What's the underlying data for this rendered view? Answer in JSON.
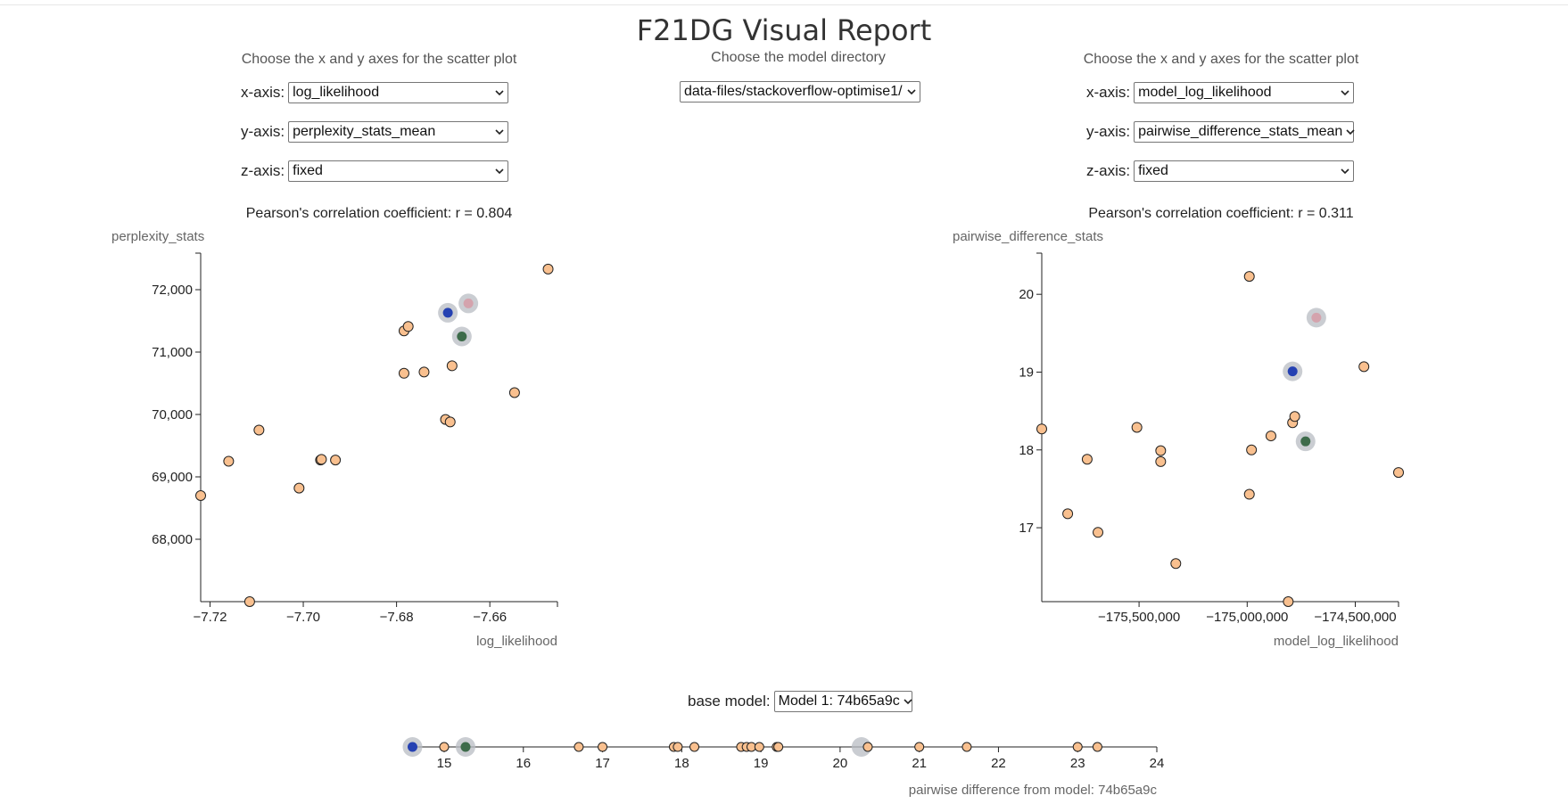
{
  "header": {
    "title": "F21DG Visual Report"
  },
  "left_panel": {
    "caption": "Choose the x and y axes for the scatter plot",
    "x_label": "x-axis:",
    "x_value": "log_likelihood",
    "y_label": "y-axis:",
    "y_value": "perplexity_stats_mean",
    "z_label": "z-axis:",
    "z_value": "fixed",
    "pearson": "Pearson's correlation coefficient: r = 0.804"
  },
  "center_panel": {
    "caption": "Choose the model directory",
    "directory_value": "data-files/stackoverflow-optimise1/"
  },
  "right_panel": {
    "caption": "Choose the x and y axes for the scatter plot",
    "x_label": "x-axis:",
    "x_value": "model_log_likelihood",
    "y_label": "y-axis:",
    "y_value": "pairwise_difference_stats_mean",
    "z_label": "z-axis:",
    "z_value": "fixed",
    "pearson": "Pearson's correlation coefficient: r = 0.311"
  },
  "base_model": {
    "label": "base model:",
    "value": "Model 1: 74b65a9c"
  },
  "colors": {
    "point_fill": "#f9c08f",
    "point_stroke": "#222222",
    "blue": "#2541b2",
    "green": "#3d6b4a",
    "pink": "#d4a3ad",
    "halo": "#b8bcc3",
    "axis": "#222222"
  },
  "chart_data": [
    {
      "type": "scatter",
      "title": "",
      "xlabel": "log_likelihood",
      "ylabel": "perplexity_stats",
      "xlim": [
        -7.722,
        -7.6455
      ],
      "ylim": [
        67000,
        72300
      ],
      "x_ticks": [
        -7.72,
        -7.7,
        -7.68,
        -7.66
      ],
      "x_tick_labels": [
        "−7.72",
        "−7.70",
        "−7.68",
        "−7.66"
      ],
      "y_ticks": [
        68000,
        69000,
        70000,
        71000,
        72000
      ],
      "y_tick_labels": [
        "68,000",
        "69,000",
        "70,000",
        "71,000",
        "72,000"
      ],
      "points": [
        {
          "x": -7.722,
          "y": 68700
        },
        {
          "x": -7.716,
          "y": 69250
        },
        {
          "x": -7.7115,
          "y": 67000
        },
        {
          "x": -7.7095,
          "y": 69750
        },
        {
          "x": -7.7009,
          "y": 68820
        },
        {
          "x": -7.6963,
          "y": 69270
        },
        {
          "x": -7.6961,
          "y": 69280
        },
        {
          "x": -7.6931,
          "y": 69270
        },
        {
          "x": -7.6784,
          "y": 70660
        },
        {
          "x": -7.6784,
          "y": 71340
        },
        {
          "x": -7.6775,
          "y": 71410
        },
        {
          "x": -7.6741,
          "y": 70680
        },
        {
          "x": -7.6695,
          "y": 69920
        },
        {
          "x": -7.6685,
          "y": 69880
        },
        {
          "x": -7.6681,
          "y": 70780
        },
        {
          "x": -7.6547,
          "y": 70350
        },
        {
          "x": -7.6475,
          "y": 72330
        }
      ],
      "highlights": [
        {
          "x": -7.669,
          "y": 71630,
          "color": "blue"
        },
        {
          "x": -7.6646,
          "y": 71780,
          "color": "pink"
        },
        {
          "x": -7.666,
          "y": 71250,
          "color": "green"
        }
      ]
    },
    {
      "type": "scatter",
      "title": "",
      "xlabel": "model_log_likelihood",
      "ylabel": "pairwise_difference_stats",
      "xlim": [
        -175950000,
        -174300000
      ],
      "ylim": [
        16.05,
        20.3
      ],
      "x_ticks": [
        -175500000,
        -175000000,
        -174500000
      ],
      "x_tick_labels": [
        "−175,500,000",
        "−175,000,000",
        "−174,500,000"
      ],
      "y_ticks": [
        17,
        18,
        19,
        20
      ],
      "y_tick_labels": [
        "17",
        "18",
        "19",
        "20"
      ],
      "points": [
        {
          "x": -175950000,
          "y": 18.27
        },
        {
          "x": -175830000,
          "y": 17.18
        },
        {
          "x": -175740000,
          "y": 17.88
        },
        {
          "x": -175690000,
          "y": 16.94
        },
        {
          "x": -175510000,
          "y": 18.29
        },
        {
          "x": -175400000,
          "y": 17.99
        },
        {
          "x": -175400000,
          "y": 17.85
        },
        {
          "x": -175330000,
          "y": 16.54
        },
        {
          "x": -174990000,
          "y": 20.23
        },
        {
          "x": -174990000,
          "y": 17.43
        },
        {
          "x": -174980000,
          "y": 18.0
        },
        {
          "x": -174890000,
          "y": 18.18
        },
        {
          "x": -174810000,
          "y": 16.05
        },
        {
          "x": -174790000,
          "y": 18.35
        },
        {
          "x": -174780000,
          "y": 18.43
        },
        {
          "x": -174460000,
          "y": 19.07
        },
        {
          "x": -174300000,
          "y": 17.71
        }
      ],
      "highlights": [
        {
          "x": -174680000,
          "y": 19.7,
          "color": "pink"
        },
        {
          "x": -174790000,
          "y": 19.01,
          "color": "blue"
        },
        {
          "x": -174730000,
          "y": 18.11,
          "color": "green"
        }
      ]
    },
    {
      "type": "scatter",
      "title": "",
      "xlabel": "pairwise difference from model: 74b65a9c",
      "ylabel": "",
      "xlim": [
        14.6,
        24
      ],
      "x_ticks": [
        15,
        16,
        17,
        18,
        19,
        20,
        21,
        22,
        23,
        24
      ],
      "x_tick_labels": [
        "15",
        "16",
        "17",
        "18",
        "19",
        "20",
        "21",
        "22",
        "23",
        "24"
      ],
      "points": [
        15.0,
        16.7,
        17.0,
        17.9,
        17.95,
        18.16,
        18.75,
        18.82,
        18.88,
        18.98,
        19.2,
        19.22,
        20.35,
        21.0,
        21.6,
        23.0,
        23.25
      ],
      "highlights": [
        {
          "x": 14.6,
          "color": "blue"
        },
        {
          "x": 15.27,
          "color": "green"
        },
        {
          "x": 20.27,
          "color": "halo"
        }
      ]
    }
  ]
}
